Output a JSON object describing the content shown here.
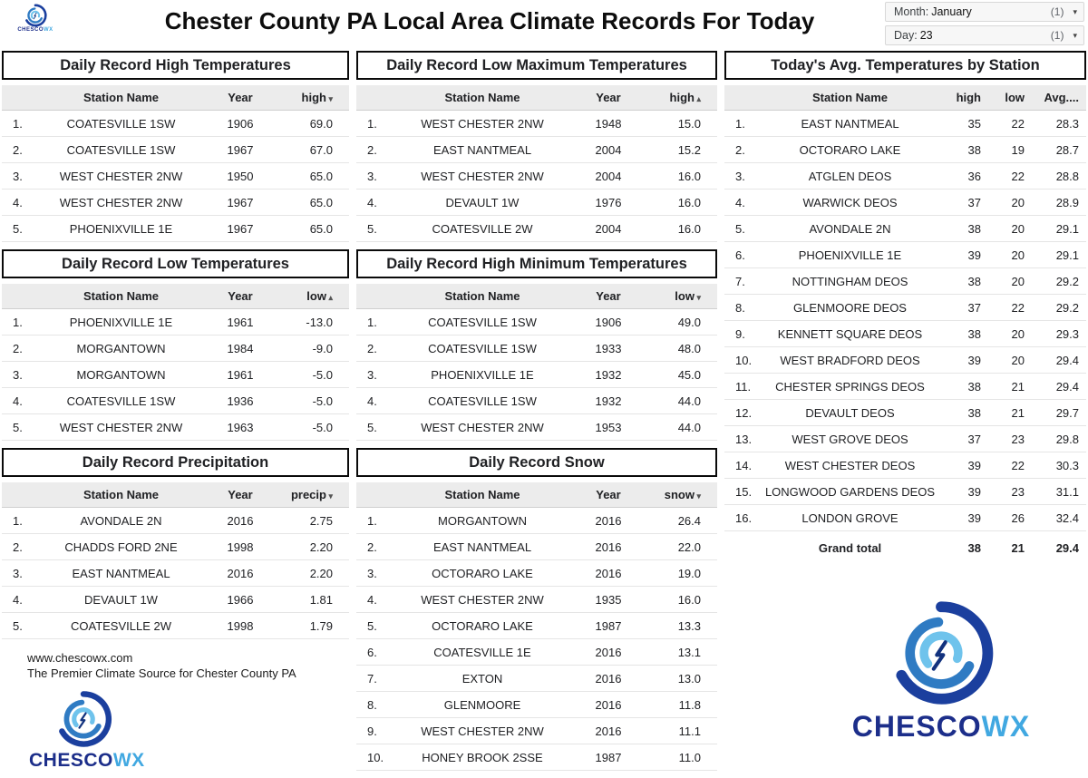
{
  "page": {
    "title": "Chester County PA Local Area Climate Records For Today"
  },
  "filters": {
    "month": {
      "label": "Month:",
      "value": "January",
      "count": "(1)"
    },
    "day": {
      "label": "Day:",
      "value": "23",
      "count": "(1)"
    }
  },
  "branding": {
    "site": "www.chescowx.com",
    "tagline": "The Premier Climate Source for Chester County PA",
    "logo_primary": "CHESCO",
    "logo_secondary": "WX",
    "colors": {
      "dark_blue": "#1c2e8a",
      "light_blue": "#41a8e1",
      "header_gray": "#ececec"
    }
  },
  "tables": {
    "record_high": {
      "title": "Daily Record High Temperatures",
      "columns": [
        {
          "label": "Station Name"
        },
        {
          "label": "Year"
        },
        {
          "label": "high",
          "sort": "desc"
        }
      ],
      "rows": [
        [
          "COATESVILLE 1SW",
          "1906",
          "69.0"
        ],
        [
          "COATESVILLE 1SW",
          "1967",
          "67.0"
        ],
        [
          "WEST CHESTER 2NW",
          "1950",
          "65.0"
        ],
        [
          "WEST CHESTER 2NW",
          "1967",
          "65.0"
        ],
        [
          "PHOENIXVILLE 1E",
          "1967",
          "65.0"
        ]
      ]
    },
    "record_low": {
      "title": "Daily Record Low Temperatures",
      "columns": [
        {
          "label": "Station Name"
        },
        {
          "label": "Year"
        },
        {
          "label": "low",
          "sort": "asc"
        }
      ],
      "rows": [
        [
          "PHOENIXVILLE 1E",
          "1961",
          "-13.0"
        ],
        [
          "MORGANTOWN",
          "1984",
          "-9.0"
        ],
        [
          "MORGANTOWN",
          "1961",
          "-5.0"
        ],
        [
          "COATESVILLE 1SW",
          "1936",
          "-5.0"
        ],
        [
          "WEST CHESTER 2NW",
          "1963",
          "-5.0"
        ]
      ]
    },
    "precip": {
      "title": "Daily Record Precipitation",
      "columns": [
        {
          "label": "Station Name"
        },
        {
          "label": "Year"
        },
        {
          "label": "precip",
          "sort": "desc"
        }
      ],
      "rows": [
        [
          "AVONDALE 2N",
          "2016",
          "2.75"
        ],
        [
          "CHADDS FORD 2NE",
          "1998",
          "2.20"
        ],
        [
          "EAST NANTMEAL",
          "2016",
          "2.20"
        ],
        [
          "DEVAULT 1W",
          "1966",
          "1.81"
        ],
        [
          "COATESVILLE 2W",
          "1998",
          "1.79"
        ]
      ]
    },
    "record_low_max": {
      "title": "Daily Record Low Maximum Temperatures",
      "columns": [
        {
          "label": "Station Name"
        },
        {
          "label": "Year"
        },
        {
          "label": "high",
          "sort": "asc"
        }
      ],
      "rows": [
        [
          "WEST CHESTER 2NW",
          "1948",
          "15.0"
        ],
        [
          "EAST NANTMEAL",
          "2004",
          "15.2"
        ],
        [
          "WEST CHESTER 2NW",
          "2004",
          "16.0"
        ],
        [
          "DEVAULT 1W",
          "1976",
          "16.0"
        ],
        [
          "COATESVILLE 2W",
          "2004",
          "16.0"
        ]
      ]
    },
    "record_high_min": {
      "title": "Daily Record High Minimum Temperatures",
      "columns": [
        {
          "label": "Station Name"
        },
        {
          "label": "Year"
        },
        {
          "label": "low",
          "sort": "desc"
        }
      ],
      "rows": [
        [
          "COATESVILLE 1SW",
          "1906",
          "49.0"
        ],
        [
          "COATESVILLE 1SW",
          "1933",
          "48.0"
        ],
        [
          "PHOENIXVILLE 1E",
          "1932",
          "45.0"
        ],
        [
          "COATESVILLE 1SW",
          "1932",
          "44.0"
        ],
        [
          "WEST CHESTER 2NW",
          "1953",
          "44.0"
        ]
      ]
    },
    "snow": {
      "title": "Daily Record Snow",
      "columns": [
        {
          "label": "Station Name"
        },
        {
          "label": "Year"
        },
        {
          "label": "snow",
          "sort": "desc"
        }
      ],
      "rows": [
        [
          "MORGANTOWN",
          "2016",
          "26.4"
        ],
        [
          "EAST NANTMEAL",
          "2016",
          "22.0"
        ],
        [
          "OCTORARO LAKE",
          "2016",
          "19.0"
        ],
        [
          "WEST CHESTER 2NW",
          "1935",
          "16.0"
        ],
        [
          "OCTORARO LAKE",
          "1987",
          "13.3"
        ],
        [
          "COATESVILLE 1E",
          "2016",
          "13.1"
        ],
        [
          "EXTON",
          "2016",
          "13.0"
        ],
        [
          "GLENMOORE",
          "2016",
          "11.8"
        ],
        [
          "WEST CHESTER 2NW",
          "2016",
          "11.1"
        ],
        [
          "HONEY BROOK 2SSE",
          "1987",
          "11.0"
        ]
      ]
    },
    "avg": {
      "title": "Today's Avg. Temperatures by Station",
      "columns": [
        {
          "label": "Station Name"
        },
        {
          "label": "high"
        },
        {
          "label": "low"
        },
        {
          "label": "Avg...."
        }
      ],
      "rows": [
        [
          "EAST NANTMEAL",
          "35",
          "22",
          "28.3"
        ],
        [
          "OCTORARO LAKE",
          "38",
          "19",
          "28.7"
        ],
        [
          "ATGLEN DEOS",
          "36",
          "22",
          "28.8"
        ],
        [
          "WARWICK DEOS",
          "37",
          "20",
          "28.9"
        ],
        [
          "AVONDALE 2N",
          "38",
          "20",
          "29.1"
        ],
        [
          "PHOENIXVILLE 1E",
          "39",
          "20",
          "29.1"
        ],
        [
          "NOTTINGHAM DEOS",
          "38",
          "20",
          "29.2"
        ],
        [
          "GLENMOORE DEOS",
          "37",
          "22",
          "29.2"
        ],
        [
          "KENNETT SQUARE DEOS",
          "38",
          "20",
          "29.3"
        ],
        [
          "WEST BRADFORD DEOS",
          "39",
          "20",
          "29.4"
        ],
        [
          "CHESTER SPRINGS DEOS",
          "38",
          "21",
          "29.4"
        ],
        [
          "DEVAULT DEOS",
          "38",
          "21",
          "29.7"
        ],
        [
          "WEST GROVE DEOS",
          "37",
          "23",
          "29.8"
        ],
        [
          "WEST CHESTER DEOS",
          "39",
          "22",
          "30.3"
        ],
        [
          "LONGWOOD GARDENS DEOS",
          "39",
          "23",
          "31.1"
        ],
        [
          "LONDON GROVE",
          "39",
          "26",
          "32.4"
        ]
      ],
      "grand_total": {
        "label": "Grand total",
        "values": [
          "38",
          "21",
          "29.4"
        ]
      }
    }
  }
}
